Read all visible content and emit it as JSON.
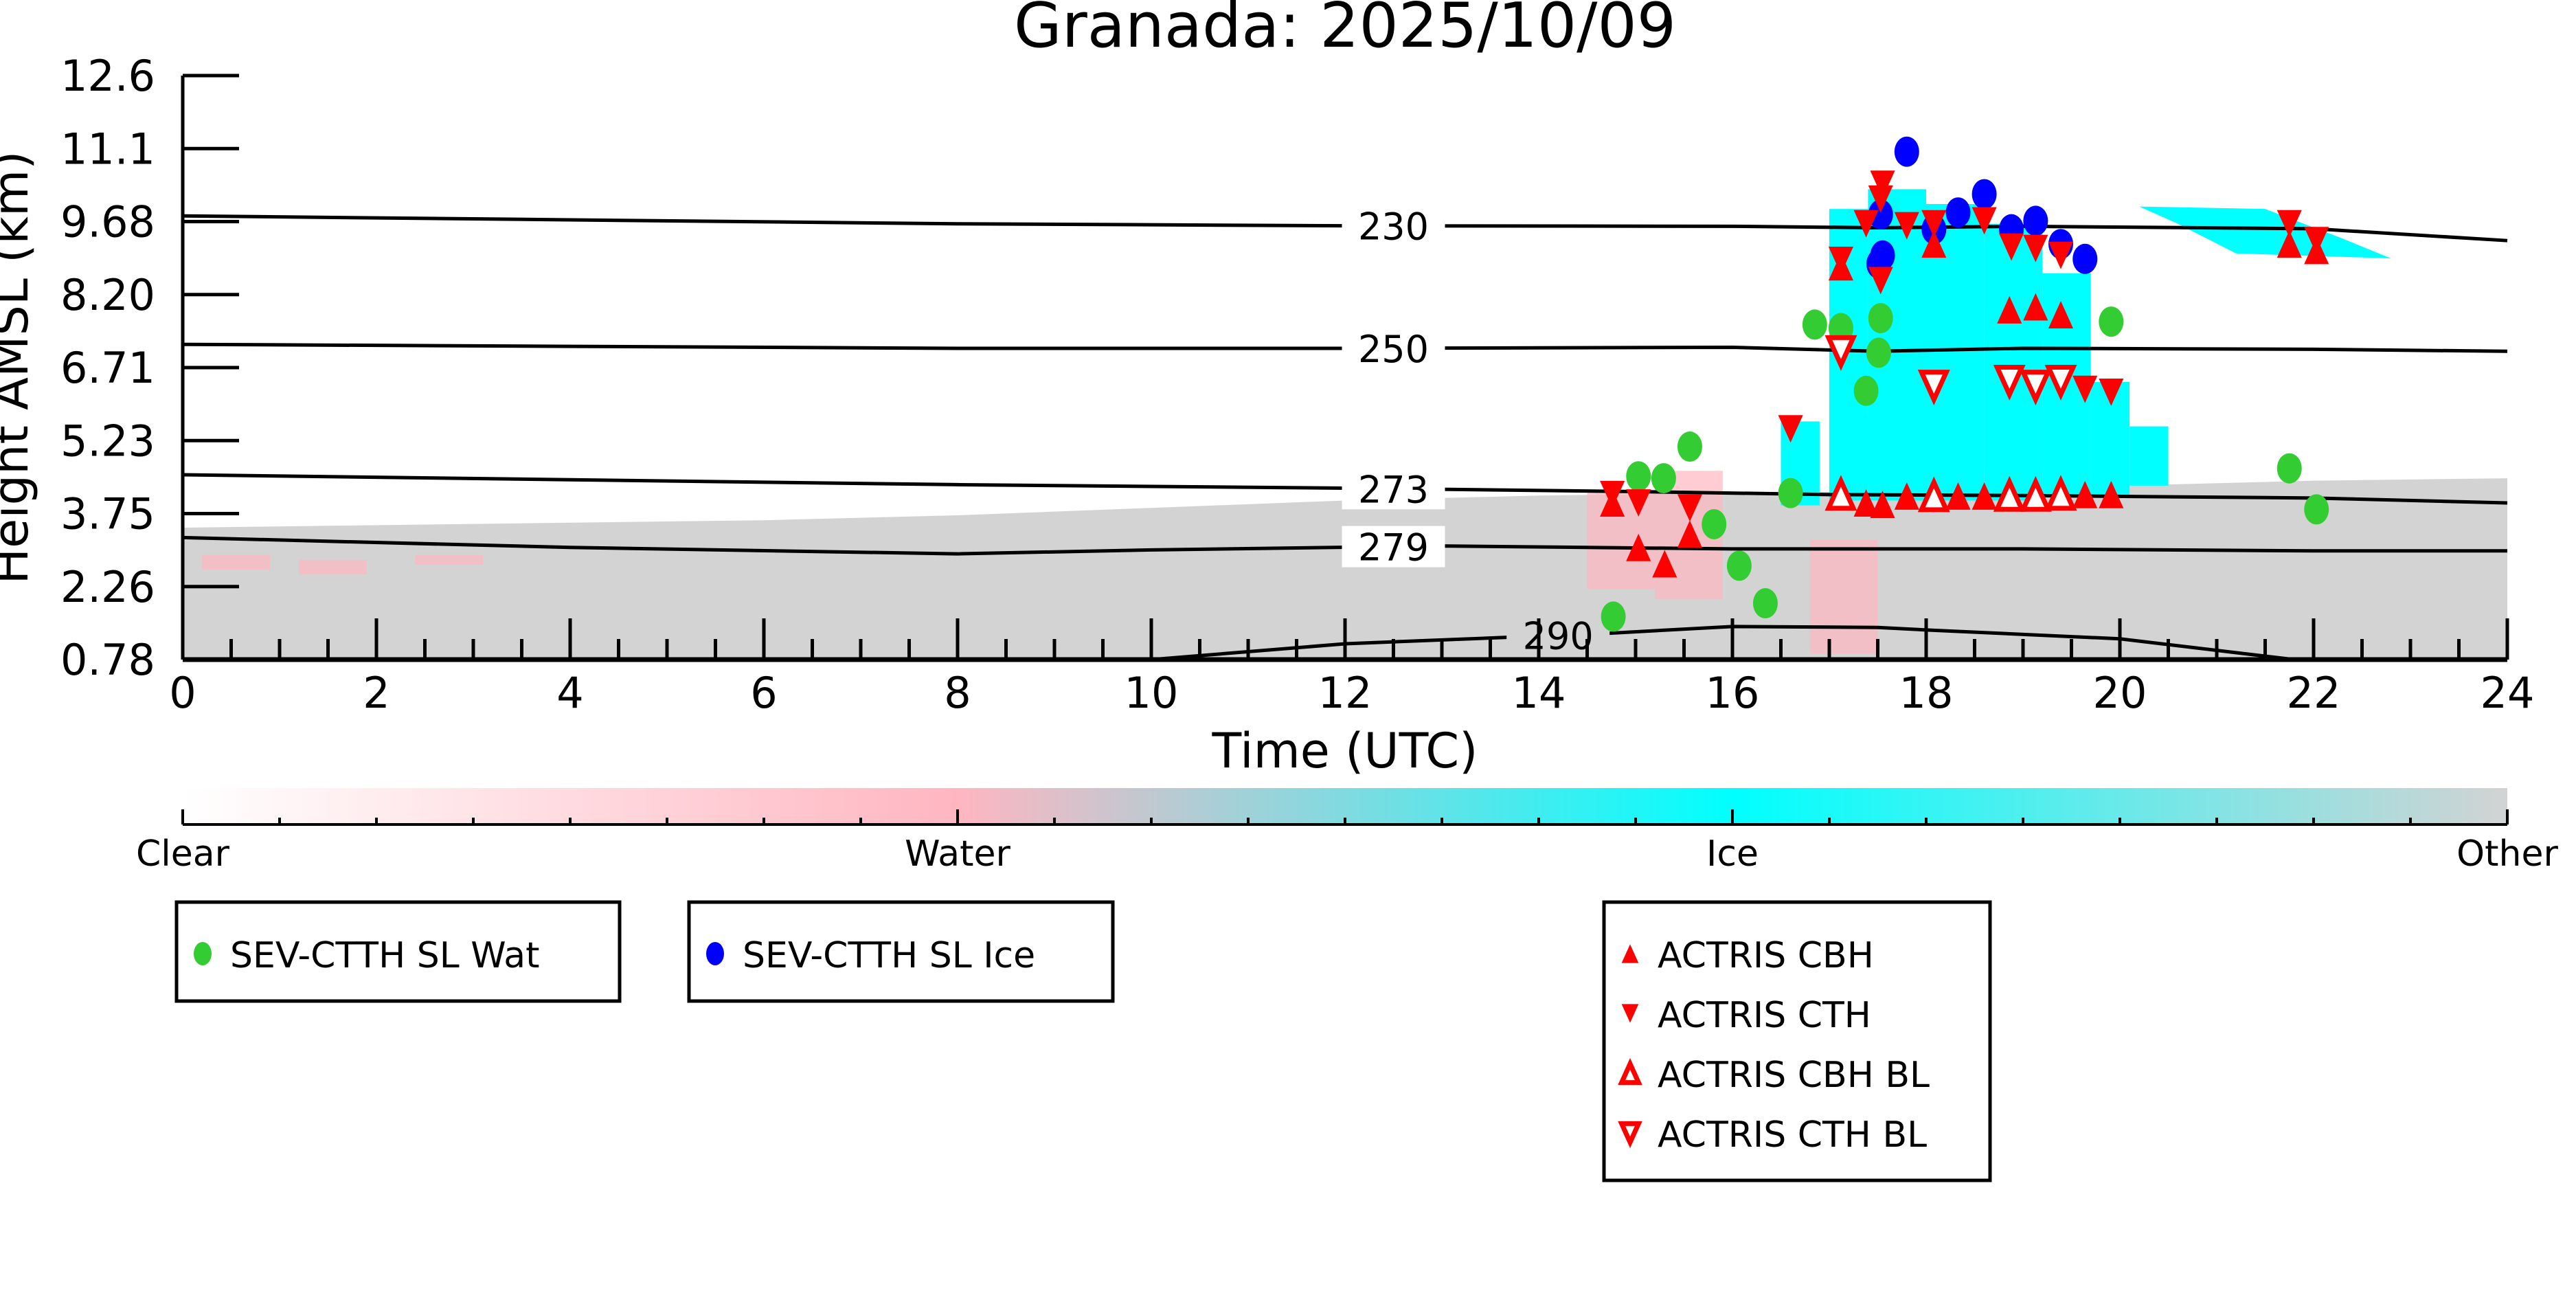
{
  "chart_data": {
    "type": "scatter",
    "title": "Granada: 2025/10/09",
    "xlabel": "Time (UTC)",
    "ylabel": "Height AMSL (km)",
    "xlim": [
      0,
      24
    ],
    "ylim": [
      0.78,
      12.6
    ],
    "xticks": [
      "0",
      "2",
      "4",
      "6",
      "8",
      "10",
      "12",
      "14",
      "16",
      "18",
      "20",
      "22",
      "24"
    ],
    "yticks": [
      "0.78",
      "2.26",
      "3.75",
      "5.23",
      "6.71",
      "8.20",
      "9.68",
      "11.1",
      "12.6"
    ],
    "colorbar": {
      "labels": [
        "Clear",
        "Water",
        "Ice",
        "Other"
      ],
      "colors": [
        "#ffffff",
        "#ffb6c1",
        "#00ffff",
        "#d3d3d3"
      ]
    },
    "contours": [
      {
        "label": "230",
        "label_x": 12.5,
        "points": [
          [
            0,
            9.76
          ],
          [
            4,
            9.68
          ],
          [
            8,
            9.6
          ],
          [
            12,
            9.56
          ],
          [
            16,
            9.55
          ],
          [
            17.5,
            9.52
          ],
          [
            19,
            9.55
          ],
          [
            22,
            9.5
          ],
          [
            24,
            9.26
          ]
        ]
      },
      {
        "label": "250",
        "label_x": 12.5,
        "points": [
          [
            0,
            7.16
          ],
          [
            4,
            7.12
          ],
          [
            8,
            7.08
          ],
          [
            12,
            7.08
          ],
          [
            16,
            7.1
          ],
          [
            17.5,
            7.02
          ],
          [
            19,
            7.08
          ],
          [
            22,
            7.06
          ],
          [
            24,
            7.02
          ]
        ]
      },
      {
        "label": "273",
        "label_x": 12.5,
        "points": [
          [
            0,
            4.52
          ],
          [
            4,
            4.42
          ],
          [
            8,
            4.32
          ],
          [
            12,
            4.25
          ],
          [
            15,
            4.18
          ],
          [
            17,
            4.12
          ],
          [
            19,
            4.1
          ],
          [
            22,
            4.05
          ],
          [
            24,
            3.95
          ]
        ]
      },
      {
        "label": "279",
        "label_x": 12.5,
        "points": [
          [
            0,
            3.25
          ],
          [
            4,
            3.05
          ],
          [
            8,
            2.92
          ],
          [
            10,
            3.0
          ],
          [
            13,
            3.08
          ],
          [
            16,
            3.02
          ],
          [
            19,
            3.02
          ],
          [
            22,
            2.98
          ],
          [
            24,
            2.98
          ]
        ]
      },
      {
        "label": "290",
        "label_x": 14.2,
        "points": [
          [
            10,
            0.78
          ],
          [
            12,
            1.1
          ],
          [
            14.7,
            1.31
          ],
          [
            16,
            1.45
          ],
          [
            17.5,
            1.43
          ],
          [
            18,
            1.38
          ],
          [
            20,
            1.2
          ],
          [
            21.5,
            0.85
          ],
          [
            21.8,
            0.78
          ]
        ]
      }
    ],
    "series": [
      {
        "name": "SEV-CTTH SL Wat",
        "marker": "circle",
        "color": "#33cc33",
        "points": [
          [
            14.77,
            1.65
          ],
          [
            15.03,
            4.49
          ],
          [
            15.29,
            4.45
          ],
          [
            15.56,
            5.09
          ],
          [
            15.81,
            3.52
          ],
          [
            16.07,
            2.68
          ],
          [
            16.34,
            1.92
          ],
          [
            16.6,
            4.15
          ],
          [
            16.85,
            7.56
          ],
          [
            17.12,
            7.49
          ],
          [
            17.38,
            6.22
          ],
          [
            17.51,
            6.99
          ],
          [
            17.53,
            7.69
          ],
          [
            19.91,
            7.62
          ],
          [
            21.75,
            4.65
          ],
          [
            22.03,
            3.82
          ]
        ]
      },
      {
        "name": "SEV-CTTH SL Ice",
        "marker": "circle",
        "color": "#0000ff",
        "points": [
          [
            17.8,
            11.06
          ],
          [
            17.53,
            9.79
          ],
          [
            17.55,
            8.96
          ],
          [
            17.51,
            8.79
          ],
          [
            18.08,
            9.49
          ],
          [
            18.33,
            9.83
          ],
          [
            18.6,
            10.2
          ],
          [
            18.88,
            9.49
          ],
          [
            19.13,
            9.66
          ],
          [
            19.39,
            9.19
          ],
          [
            19.64,
            8.89
          ]
        ]
      },
      {
        "name": "ACTRIS CBH",
        "marker": "triangle-up",
        "color": "#ff0000",
        "points": [
          [
            14.76,
            3.95
          ],
          [
            15.03,
            3.05
          ],
          [
            15.3,
            2.72
          ],
          [
            15.56,
            3.32
          ],
          [
            17.38,
            3.95
          ],
          [
            17.55,
            3.92
          ],
          [
            17.8,
            4.09
          ],
          [
            18.33,
            4.09
          ],
          [
            18.6,
            4.09
          ],
          [
            19.64,
            4.12
          ],
          [
            19.91,
            4.12
          ],
          [
            18.86,
            7.86
          ],
          [
            19.13,
            7.92
          ],
          [
            19.39,
            7.76
          ],
          [
            17.12,
            8.73
          ],
          [
            18.08,
            9.19
          ],
          [
            21.75,
            9.19
          ],
          [
            22.03,
            9.06
          ]
        ]
      },
      {
        "name": "ACTRIS CTH",
        "marker": "triangle-down",
        "color": "#ff0000",
        "points": [
          [
            14.76,
            4.12
          ],
          [
            15.03,
            3.95
          ],
          [
            15.56,
            3.85
          ],
          [
            16.6,
            5.45
          ],
          [
            17.12,
            8.86
          ],
          [
            17.55,
            10.4
          ],
          [
            17.53,
            10.1
          ],
          [
            17.38,
            9.6
          ],
          [
            17.8,
            9.56
          ],
          [
            18.08,
            9.6
          ],
          [
            18.6,
            9.66
          ],
          [
            18.88,
            9.13
          ],
          [
            19.13,
            9.1
          ],
          [
            19.39,
            8.96
          ],
          [
            17.53,
            8.45
          ],
          [
            19.64,
            6.25
          ],
          [
            19.91,
            6.19
          ],
          [
            21.75,
            9.6
          ],
          [
            22.03,
            9.26
          ]
        ]
      },
      {
        "name": "ACTRIS CBH BL",
        "marker": "triangle-up-open",
        "color": "#ff0000",
        "points": [
          [
            17.12,
            4.12
          ],
          [
            18.08,
            4.09
          ],
          [
            18.86,
            4.1
          ],
          [
            19.13,
            4.1
          ],
          [
            19.39,
            4.12
          ]
        ]
      },
      {
        "name": "ACTRIS CTH BL",
        "marker": "triangle-down-open",
        "color": "#ff0000",
        "points": [
          [
            17.12,
            7.02
          ],
          [
            18.08,
            6.32
          ],
          [
            18.86,
            6.42
          ],
          [
            19.13,
            6.32
          ],
          [
            19.39,
            6.42
          ]
        ]
      }
    ],
    "legend_groups": [
      [
        0
      ],
      [
        1
      ],
      [
        2,
        3,
        4,
        5
      ]
    ]
  }
}
